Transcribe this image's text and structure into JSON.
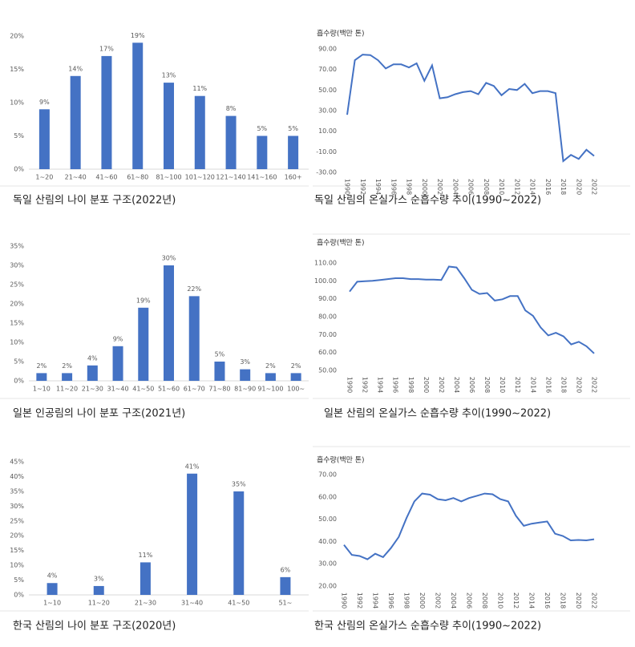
{
  "chart_data": [
    {
      "type": "bar",
      "caption": "독일 산림의 나이 분포 구조(2022년)",
      "categories": [
        "1~20",
        "21~40",
        "41~60",
        "61~80",
        "81~100",
        "101~120",
        "121~140",
        "141~160",
        "160+"
      ],
      "values": [
        9,
        14,
        17,
        19,
        13,
        11,
        8,
        5,
        5
      ],
      "value_labels": [
        "9%",
        "14%",
        "17%",
        "19%",
        "13%",
        "11%",
        "8%",
        "5%",
        "5%"
      ],
      "color": "#4472c4",
      "ylim": [
        0,
        20
      ],
      "yticks": [
        {
          "value": 0,
          "label": "0%"
        },
        {
          "value": 5,
          "label": "5%"
        },
        {
          "value": 10,
          "label": "10%"
        },
        {
          "value": 15,
          "label": "15%"
        },
        {
          "value": 20,
          "label": "20%"
        }
      ]
    },
    {
      "type": "line",
      "caption": "독일 산림의 온실가스 순흡수량 추이(1990~2022)",
      "ylabel": "흡수량(백만 톤)",
      "x": [
        1990,
        1991,
        1992,
        1993,
        1994,
        1995,
        1996,
        1997,
        1998,
        1999,
        2000,
        2001,
        2002,
        2003,
        2004,
        2005,
        2006,
        2007,
        2008,
        2009,
        2010,
        2011,
        2012,
        2013,
        2014,
        2015,
        2016,
        2017,
        2018,
        2019,
        2020,
        2021,
        2022
      ],
      "values": [
        26,
        79,
        84.5,
        84,
        79,
        71,
        75,
        75,
        72,
        76,
        59,
        74,
        42,
        43,
        46,
        48,
        49,
        46,
        57,
        54,
        45,
        51,
        50,
        56,
        47,
        49,
        49,
        47,
        -19,
        -13,
        -17,
        -8,
        -14
      ],
      "color": "#4472c4",
      "xlim": [
        1990,
        2022
      ],
      "xticks": [
        1990,
        1992,
        1994,
        1996,
        1998,
        2000,
        2002,
        2004,
        2006,
        2008,
        2010,
        2012,
        2014,
        2016,
        2018,
        2020,
        2022
      ],
      "ylim": [
        -30,
        90
      ],
      "yticks": [
        {
          "value": -30,
          "label": "-30.00"
        },
        {
          "value": -10,
          "label": "-10.00"
        },
        {
          "value": 10,
          "label": "10.00"
        },
        {
          "value": 30,
          "label": "30.00"
        },
        {
          "value": 50,
          "label": "50.00"
        },
        {
          "value": 70,
          "label": "70.00"
        },
        {
          "value": 90,
          "label": "90.00"
        }
      ]
    },
    {
      "type": "bar",
      "caption": "일본 인공림의 나이 분포 구조(2021년)",
      "categories": [
        "1~10",
        "11~20",
        "21~30",
        "31~40",
        "41~50",
        "51~60",
        "61~70",
        "71~80",
        "81~90",
        "91~100",
        "100~"
      ],
      "values": [
        2,
        2,
        4,
        9,
        19,
        30,
        22,
        5,
        3,
        2,
        2
      ],
      "value_labels": [
        "2%",
        "2%",
        "4%",
        "9%",
        "19%",
        "30%",
        "22%",
        "5%",
        "3%",
        "2%",
        "2%"
      ],
      "color": "#4472c4",
      "ylim": [
        0,
        35
      ],
      "yticks": [
        {
          "value": 0,
          "label": "0%"
        },
        {
          "value": 5,
          "label": "5%"
        },
        {
          "value": 10,
          "label": "10%"
        },
        {
          "value": 15,
          "label": "15%"
        },
        {
          "value": 20,
          "label": "20%"
        },
        {
          "value": 25,
          "label": "25%"
        },
        {
          "value": 30,
          "label": "30%"
        },
        {
          "value": 35,
          "label": "35%"
        }
      ]
    },
    {
      "type": "line",
      "caption": "일본 산림의 온실가스 순흡수량 추이(1990~2022)",
      "ylabel": "흡수량(백만 톤)",
      "x": [
        1990,
        1991,
        1992,
        1993,
        1994,
        1995,
        1996,
        1997,
        1998,
        1999,
        2000,
        2001,
        2002,
        2003,
        2004,
        2005,
        2006,
        2007,
        2008,
        2009,
        2010,
        2011,
        2012,
        2013,
        2014,
        2015,
        2016,
        2017,
        2018,
        2019,
        2020,
        2021,
        2022
      ],
      "values": [
        94,
        99.5,
        99.8,
        100,
        100.5,
        101,
        101.5,
        101.5,
        101,
        101,
        100.7,
        100.7,
        100.5,
        108,
        107.5,
        101.5,
        95,
        92.7,
        93.2,
        89,
        89.7,
        91.5,
        91.5,
        83.5,
        80.5,
        74,
        69.5,
        71,
        69,
        64.5,
        66,
        63.5,
        59.5
      ],
      "color": "#4472c4",
      "xlim": [
        1990,
        2022
      ],
      "xticks": [
        1990,
        1992,
        1994,
        1996,
        1998,
        2000,
        2002,
        2004,
        2006,
        2008,
        2010,
        2012,
        2014,
        2016,
        2018,
        2020,
        2022
      ],
      "ylim": [
        50,
        110
      ],
      "yticks": [
        {
          "value": 50,
          "label": "50.00"
        },
        {
          "value": 60,
          "label": "60.00"
        },
        {
          "value": 70,
          "label": "70.00"
        },
        {
          "value": 80,
          "label": "80.00"
        },
        {
          "value": 90,
          "label": "90.00"
        },
        {
          "value": 100,
          "label": "100.00"
        },
        {
          "value": 110,
          "label": "110.00"
        }
      ]
    },
    {
      "type": "bar",
      "caption": "한국 산림의 나이 분포 구조(2020년)",
      "categories": [
        "1~10",
        "11~20",
        "21~30",
        "31~40",
        "41~50",
        "51~"
      ],
      "values": [
        4,
        3,
        11,
        41,
        35,
        6
      ],
      "value_labels": [
        "4%",
        "3%",
        "11%",
        "41%",
        "35%",
        "6%"
      ],
      "color": "#4472c4",
      "ylim": [
        0,
        45
      ],
      "yticks": [
        {
          "value": 0,
          "label": "0%"
        },
        {
          "value": 5,
          "label": "5%"
        },
        {
          "value": 10,
          "label": "10%"
        },
        {
          "value": 15,
          "label": "15%"
        },
        {
          "value": 20,
          "label": "20%"
        },
        {
          "value": 25,
          "label": "25%"
        },
        {
          "value": 30,
          "label": "30%"
        },
        {
          "value": 35,
          "label": "35%"
        },
        {
          "value": 40,
          "label": "40%"
        },
        {
          "value": 45,
          "label": "45%"
        }
      ]
    },
    {
      "type": "line",
      "caption": "한국 산림의 온실가스 순흡수량 추이(1990~2022)",
      "ylabel": "흡수량(백만 톤)",
      "x": [
        1990,
        1991,
        1992,
        1993,
        1994,
        1995,
        1996,
        1997,
        1998,
        1999,
        2000,
        2001,
        2002,
        2003,
        2004,
        2005,
        2006,
        2007,
        2008,
        2009,
        2010,
        2011,
        2012,
        2013,
        2014,
        2015,
        2016,
        2017,
        2018,
        2019,
        2020,
        2021,
        2022
      ],
      "values": [
        38.5,
        34,
        33.5,
        32,
        34.5,
        33,
        37,
        42,
        50.5,
        58,
        61.5,
        61,
        59,
        58.5,
        59.5,
        58,
        59.5,
        60.5,
        61.5,
        61.2,
        59,
        58,
        51.5,
        47,
        48,
        48.5,
        49,
        43.5,
        42.5,
        40.5,
        40.7,
        40.5,
        41
      ],
      "color": "#4472c4",
      "xlim": [
        1990,
        2022
      ],
      "xticks": [
        1990,
        1992,
        1994,
        1996,
        1998,
        2000,
        2002,
        2004,
        2006,
        2008,
        2010,
        2012,
        2014,
        2016,
        2018,
        2020,
        2022
      ],
      "ylim": [
        20,
        70
      ],
      "yticks": [
        {
          "value": 20,
          "label": "20.00"
        },
        {
          "value": 30,
          "label": "30.00"
        },
        {
          "value": 40,
          "label": "40.00"
        },
        {
          "value": 50,
          "label": "50.00"
        },
        {
          "value": 60,
          "label": "60.00"
        },
        {
          "value": 70,
          "label": "70.00"
        }
      ]
    }
  ]
}
